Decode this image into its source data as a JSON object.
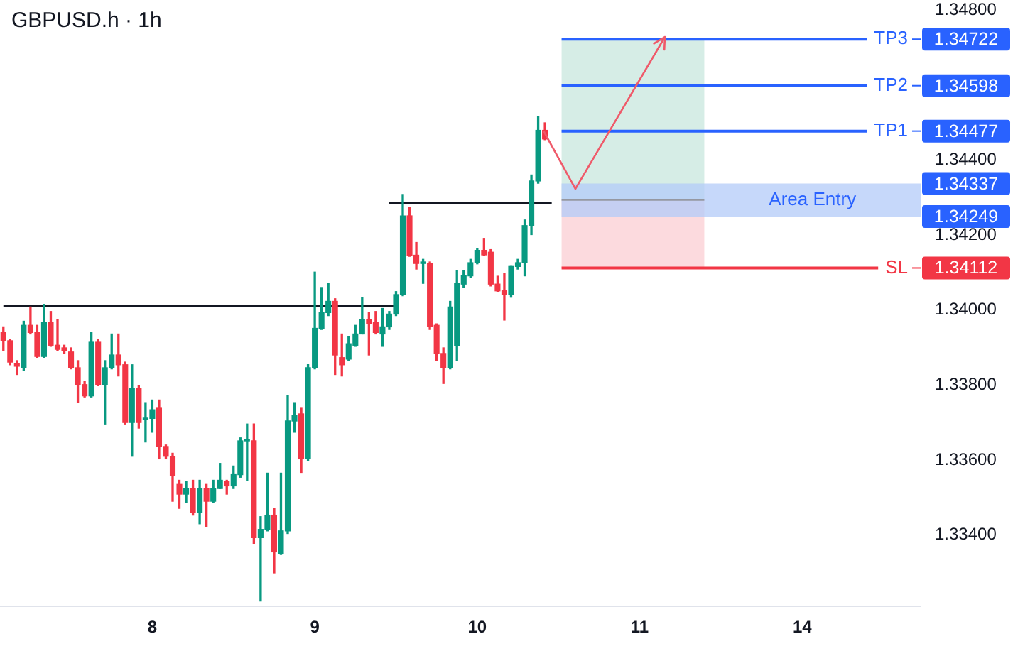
{
  "chart_data": {
    "type": "candlestick",
    "title": "GBPUSD.h · 1h",
    "categories": [
      null,
      null,
      null,
      null,
      null,
      null,
      null,
      null,
      null,
      null,
      null,
      null,
      null,
      null,
      null,
      null,
      null,
      null,
      null,
      null,
      null,
      null,
      "8",
      null,
      null,
      null,
      null,
      null,
      null,
      null,
      null,
      null,
      null,
      null,
      null,
      null,
      null,
      null,
      null,
      null,
      null,
      null,
      null,
      null,
      null,
      null,
      "9",
      null,
      null,
      null,
      null,
      null,
      null,
      null,
      null,
      null,
      null,
      null,
      null,
      null,
      null,
      null,
      null,
      null,
      null,
      null,
      null,
      null,
      null,
      null,
      "10",
      null,
      null,
      null,
      null,
      null,
      null,
      null,
      null,
      null,
      null,
      null,
      null,
      null,
      null,
      null,
      null,
      null,
      null,
      null,
      null,
      null,
      null,
      null,
      "11",
      null,
      null,
      null,
      null,
      null,
      null,
      null,
      null,
      null,
      null,
      null,
      null,
      null,
      null,
      null,
      null,
      null,
      null,
      null,
      null,
      null,
      null,
      null,
      "14",
      null,
      null,
      null,
      null,
      null,
      null,
      null,
      null,
      null,
      null,
      null,
      null,
      null,
      null,
      null,
      null,
      null
    ],
    "ohlc": [
      [
        1.3394,
        1.33955,
        1.33891,
        1.33918
      ],
      [
        1.33918,
        1.33921,
        1.33854,
        1.33861
      ],
      [
        1.33858,
        1.33865,
        1.33828,
        1.3385
      ],
      [
        1.33846,
        1.3397,
        1.33839,
        1.33959
      ],
      [
        1.33959,
        1.34008,
        1.33936,
        1.3394
      ],
      [
        1.3394,
        1.33959,
        1.33873,
        1.33876
      ],
      [
        1.33876,
        1.34015,
        1.33873,
        1.33966
      ],
      [
        1.33966,
        1.33996,
        1.33903,
        1.33906
      ],
      [
        1.33906,
        1.33974,
        1.33891,
        1.33895
      ],
      [
        1.33899,
        1.33906,
        1.33884,
        1.33891
      ],
      [
        1.33888,
        1.33899,
        1.33843,
        1.33846
      ],
      [
        1.33846,
        1.33865,
        1.33753,
        1.33801
      ],
      [
        1.33801,
        1.33809,
        1.33768,
        1.33771
      ],
      [
        1.33771,
        1.3394,
        1.33768,
        1.33914
      ],
      [
        1.33914,
        1.33921,
        1.33798,
        1.33801
      ],
      [
        1.33801,
        1.33865,
        1.33696,
        1.33846
      ],
      [
        1.33846,
        1.33936,
        1.33843,
        1.3388
      ],
      [
        1.3388,
        1.33936,
        1.33824,
        1.33854
      ],
      [
        1.33854,
        1.33861,
        1.33696,
        1.337
      ],
      [
        1.337,
        1.33854,
        1.3361,
        1.3379
      ],
      [
        1.3379,
        1.33798,
        1.33685,
        1.337
      ],
      [
        1.33708,
        1.33753,
        1.33648,
        1.33711
      ],
      [
        1.33711,
        1.3376,
        1.33674,
        1.33734
      ],
      [
        1.33738,
        1.3376,
        1.33603,
        1.33636
      ],
      [
        1.33636,
        1.3364,
        1.33603,
        1.3361
      ],
      [
        1.3361,
        1.33618,
        1.3349,
        1.33558
      ],
      [
        1.33535,
        1.33546,
        1.33471,
        1.33509
      ],
      [
        1.33509,
        1.33543,
        1.33486,
        1.33524
      ],
      [
        1.33524,
        1.33546,
        1.33453,
        1.3346
      ],
      [
        1.3346,
        1.33546,
        1.3343,
        1.33524
      ],
      [
        1.33524,
        1.33535,
        1.33423,
        1.3349
      ],
      [
        1.3349,
        1.33546,
        1.33486,
        1.33524
      ],
      [
        1.33524,
        1.33591,
        1.33524,
        1.33546
      ],
      [
        1.33543,
        1.33546,
        1.33509,
        1.33531
      ],
      [
        1.33531,
        1.33584,
        1.33524,
        1.33561
      ],
      [
        1.33561,
        1.33659,
        1.33554,
        1.33651
      ],
      [
        1.33651,
        1.33696,
        1.33546,
        1.33655
      ],
      [
        1.33651,
        1.33696,
        1.33378,
        1.33393
      ],
      [
        1.33393,
        1.33449,
        1.33224,
        1.33415
      ],
      [
        1.33415,
        1.33565,
        1.33411,
        1.33453
      ],
      [
        1.33453,
        1.33471,
        1.33299,
        1.33355
      ],
      [
        1.33351,
        1.33565,
        1.33348,
        1.33411
      ],
      [
        1.33411,
        1.33771,
        1.33404,
        1.33704
      ],
      [
        1.33704,
        1.33753,
        1.33674,
        1.33719
      ],
      [
        1.33723,
        1.33738,
        1.33565,
        1.33603
      ],
      [
        1.33603,
        1.33854,
        1.33599,
        1.33846
      ],
      [
        1.33846,
        1.34101,
        1.33843,
        1.33951
      ],
      [
        1.33951,
        1.3406,
        1.33948,
        1.33993
      ],
      [
        1.33993,
        1.34071,
        1.33985,
        1.34023
      ],
      [
        1.34023,
        1.3403,
        1.33828,
        1.3388
      ],
      [
        1.33873,
        1.33936,
        1.33824,
        1.33854
      ],
      [
        1.33869,
        1.33929,
        1.33865,
        1.3391
      ],
      [
        1.33906,
        1.33959,
        1.33903,
        1.33936
      ],
      [
        1.33936,
        1.34034,
        1.33936,
        1.33974
      ],
      [
        1.33974,
        1.33993,
        1.3388,
        1.33963
      ],
      [
        1.33966,
        1.33996,
        1.33936,
        1.3394
      ],
      [
        1.33936,
        1.34004,
        1.33903,
        1.33955
      ],
      [
        1.33955,
        1.33996,
        1.33948,
        1.33989
      ],
      [
        1.33989,
        1.34049,
        1.33985,
        1.34041
      ],
      [
        1.34041,
        1.34308,
        1.34038,
        1.34251
      ],
      [
        1.34251,
        1.34274,
        1.34143,
        1.34146
      ],
      [
        1.34146,
        1.3418,
        1.34109,
        1.34124
      ],
      [
        1.34124,
        1.34135,
        1.34071,
        1.34128
      ],
      [
        1.34124,
        1.34128,
        1.33948,
        1.33955
      ],
      [
        1.33959,
        1.33963,
        1.33865,
        1.33884
      ],
      [
        1.33884,
        1.33899,
        1.33804,
        1.33846
      ],
      [
        1.33846,
        1.34023,
        1.33843,
        1.34008
      ],
      [
        1.33904,
        1.34106,
        1.33866,
        1.34072
      ],
      [
        1.34069,
        1.34105,
        1.3406,
        1.34091
      ],
      [
        1.34091,
        1.34135,
        1.34086,
        1.34126
      ],
      [
        1.34126,
        1.34164,
        1.34123,
        1.34159
      ],
      [
        1.34159,
        1.34191,
        1.34146,
        1.34147
      ],
      [
        1.34154,
        1.34161,
        1.34064,
        1.34069
      ],
      [
        1.34069,
        1.3409,
        1.34049,
        1.34051
      ],
      [
        1.34051,
        1.34098,
        1.33973,
        1.34041
      ],
      [
        1.34041,
        1.34116,
        1.34034,
        1.34116
      ],
      [
        1.34116,
        1.34135,
        1.34109,
        1.34126
      ],
      [
        1.34126,
        1.3424,
        1.34091,
        1.34225
      ],
      [
        1.34225,
        1.3436,
        1.34201,
        1.34344
      ],
      [
        1.34344,
        1.34516,
        1.34338,
        1.34479
      ],
      [
        1.34479,
        1.34499,
        1.34454,
        1.34456
      ],
      null,
      null,
      null,
      null,
      null,
      null,
      null,
      null,
      null,
      null,
      null,
      null,
      null,
      null,
      null,
      null,
      null,
      null,
      null,
      null,
      null,
      null,
      null,
      null,
      null,
      null,
      null,
      null,
      null,
      null,
      null,
      null,
      null,
      null,
      null,
      null,
      null,
      null,
      null,
      null,
      null,
      null,
      null,
      null,
      null,
      null,
      null,
      null,
      null,
      null,
      null,
      null,
      null,
      null,
      null
    ],
    "colors": [
      "#f23645",
      "#f23645",
      "#f23645",
      "#089981",
      "#f23645",
      "#f23645",
      "#089981",
      "#f23645",
      "#f23645",
      "#f23645",
      "#f23645",
      "#f23645",
      "#f23645",
      "#089981",
      "#f23645",
      "#089981",
      "#089981",
      "#f23645",
      "#f23645",
      "#089981",
      "#f23645",
      "#089981",
      "#089981",
      "#f23645",
      "#f23645",
      "#f23645",
      "#f23645",
      "#089981",
      "#f23645",
      "#089981",
      "#f23645",
      "#089981",
      "#089981",
      "#f23645",
      "#089981",
      "#089981",
      "#089981",
      "#f23645",
      "#089981",
      "#089981",
      "#f23645",
      "#089981",
      "#089981",
      "#089981",
      "#f23645",
      "#089981",
      "#089981",
      "#089981",
      "#089981",
      "#f23645",
      "#f23645",
      "#089981",
      "#089981",
      "#089981",
      "#f23645",
      "#f23645",
      "#089981",
      "#089981",
      "#089981",
      "#089981",
      "#f23645",
      "#f23645",
      "#089981",
      "#f23645",
      "#f23645",
      "#f23645",
      "#089981",
      "#089981",
      "#089981",
      "#089981",
      "#089981",
      "#f23645",
      "#f23645",
      "#f23645",
      "#f23645",
      "#089981",
      "#089981",
      "#089981",
      "#089981",
      "#089981",
      "#f23645",
      null,
      null,
      null,
      null,
      null,
      null,
      null,
      null,
      null,
      null,
      null,
      null,
      null,
      null,
      null,
      null,
      null,
      null,
      null,
      null,
      null,
      null,
      null,
      null,
      null,
      null,
      null,
      null,
      null,
      null,
      null,
      null,
      null,
      null,
      null,
      null,
      null,
      null,
      null,
      null,
      null,
      null,
      null,
      null,
      null,
      null,
      null,
      null,
      null,
      null,
      null,
      null,
      null,
      null,
      null
    ],
    "series": [
      {
        "type": "line",
        "color": "#131722",
        "values": [
          1.3401,
          1.3401,
          1.3401,
          1.3401,
          1.3401,
          1.3401,
          1.3401,
          1.3401,
          1.3401,
          1.3401,
          1.3401,
          1.3401,
          1.3401,
          1.3401,
          1.3401,
          1.3401,
          1.3401,
          1.3401,
          1.3401,
          1.3401,
          1.3401,
          1.3401,
          1.3401,
          1.3401,
          1.3401,
          1.3401,
          1.3401,
          1.3401,
          1.3401,
          1.3401,
          1.3401,
          1.3401,
          1.3401,
          1.3401,
          1.3401,
          1.3401,
          1.3401,
          1.3401,
          1.3401,
          1.3401,
          1.3401,
          1.3401,
          1.3401,
          1.3401,
          1.3401,
          1.3401,
          1.3401,
          1.3401,
          1.3401,
          1.3401,
          1.3401,
          1.3401,
          1.3401,
          1.3401,
          1.3401,
          1.3401,
          1.3401,
          1.3401,
          1.3401,
          null,
          null,
          null,
          null,
          null,
          null,
          null,
          null,
          null,
          null,
          null,
          null,
          null,
          null,
          null,
          null,
          null,
          null,
          null,
          null,
          null,
          null,
          null,
          null,
          null,
          null,
          null,
          null,
          null,
          null,
          null,
          null,
          null,
          null,
          null,
          null,
          null,
          null,
          null,
          null,
          null,
          null,
          null,
          null,
          null,
          null,
          null,
          null,
          null,
          null,
          null,
          null,
          null,
          null,
          null,
          null,
          null,
          null,
          null,
          null,
          null,
          null,
          null,
          null,
          null,
          null,
          null,
          null,
          null,
          null,
          null,
          null,
          null,
          null,
          null,
          null,
          null
        ]
      },
      {
        "type": "line",
        "color": "#131722",
        "values": [
          null,
          null,
          null,
          null,
          null,
          null,
          null,
          null,
          null,
          null,
          null,
          null,
          null,
          null,
          null,
          null,
          null,
          null,
          null,
          null,
          null,
          null,
          null,
          null,
          null,
          null,
          null,
          null,
          null,
          null,
          null,
          null,
          null,
          null,
          null,
          null,
          null,
          null,
          null,
          null,
          null,
          null,
          null,
          null,
          null,
          null,
          null,
          null,
          null,
          null,
          null,
          null,
          null,
          null,
          null,
          null,
          null,
          1.34285,
          1.34285,
          1.34285,
          1.34285,
          1.34285,
          1.34285,
          1.34285,
          1.34285,
          1.34285,
          1.34285,
          1.34285,
          1.34285,
          1.34285,
          1.34285,
          1.34285,
          1.34285,
          1.34285,
          1.34285,
          1.34285,
          1.34285,
          1.34285,
          1.34285,
          1.34285,
          1.34285,
          1.34285,
          null,
          null,
          null,
          null,
          null,
          null,
          null,
          null,
          null,
          null,
          null,
          null,
          null,
          null,
          null,
          null,
          null,
          null,
          null,
          null,
          null,
          null,
          null,
          null,
          null,
          null,
          null,
          null,
          null,
          null,
          null,
          null,
          null,
          null,
          null,
          null,
          null,
          null,
          null,
          null,
          null,
          null,
          null,
          null,
          null,
          null,
          null,
          null,
          null,
          null,
          null,
          null,
          null,
          null
        ]
      }
    ],
    "ylim": [
      1.3321,
      1.348
    ],
    "yticks": [
      {
        "value": 1.334,
        "label": "1.33400"
      },
      {
        "value": 1.336,
        "label": "1.33600"
      },
      {
        "value": 1.338,
        "label": "1.33800"
      },
      {
        "value": 1.34,
        "label": "1.34000"
      },
      {
        "value": 1.342,
        "label": "1.34200"
      },
      {
        "value": 1.344,
        "label": "1.34400"
      },
      {
        "value": 1.346,
        "label": null
      },
      {
        "value": 1.348,
        "label": "1.34800"
      }
    ],
    "bands": [
      {
        "axis": "y",
        "from": 1.34293,
        "to": 1.34722,
        "color": "#d6ede6"
      },
      {
        "axis": "y",
        "from": 1.34112,
        "to": 1.34293,
        "color": "#fcdade"
      },
      {
        "axis": "y",
        "from": 1.34249,
        "to": 1.34337,
        "label": "Area Entry",
        "color": "#b3cbf8"
      }
    ],
    "ref_lines": [
      {
        "axis": "y",
        "value": 1.34722,
        "label": "TP3",
        "color": "#2962ff"
      },
      {
        "axis": "y",
        "value": 1.34598,
        "label": "TP2",
        "color": "#2962ff"
      },
      {
        "axis": "y",
        "value": 1.34477,
        "label": "TP1",
        "color": "#2962ff"
      },
      {
        "axis": "y",
        "value": 1.34293,
        "color": "#9598a1"
      },
      {
        "axis": "y",
        "value": 1.34112,
        "label": "SL",
        "color": "#f23645"
      }
    ],
    "annotations": [
      "1.34722",
      "1.34598",
      "1.34477",
      "1.34337",
      "1.34249",
      "1.34112"
    ]
  }
}
